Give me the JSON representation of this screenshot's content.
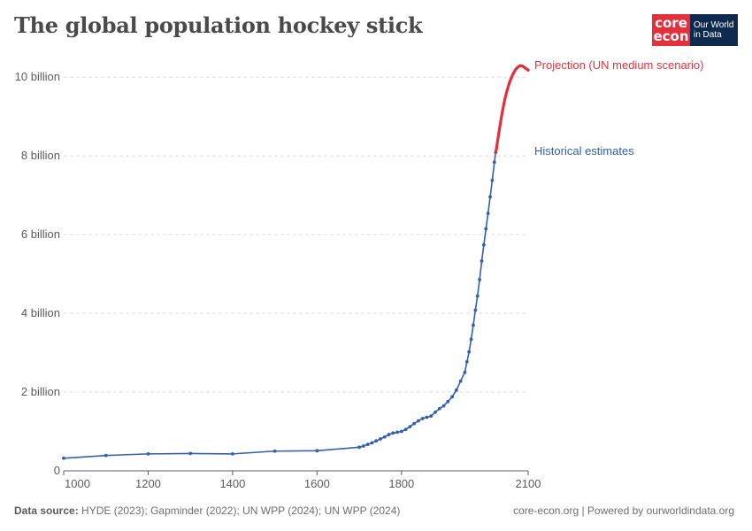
{
  "header": {
    "title": "The global population hockey stick",
    "logo_core_top": "core",
    "logo_core_bottom": "econ",
    "logo_owid_line1": "Our World",
    "logo_owid_line2": "in Data"
  },
  "footer": {
    "source_label": "Data source:",
    "source_text": "HYDE (2023); Gapminder (2022); UN WPP (2024); UN WPP (2024)",
    "credit": "core-econ.org | Powered by ourworldindata.org"
  },
  "colors": {
    "historical": "#3360a9",
    "projection": "#e2313c",
    "grid": "#dddddd",
    "axis": "#5b5b5b"
  },
  "chart_data": {
    "type": "line",
    "title": "The global population hockey stick",
    "xlim": [
      1000,
      2100
    ],
    "ylim": [
      0,
      10.5
    ],
    "y_unit": "billion",
    "x_ticks": [
      1000,
      1200,
      1400,
      1600,
      1800,
      2100
    ],
    "y_ticks": [
      {
        "value": 0,
        "label": "0"
      },
      {
        "value": 2,
        "label": "2 billion"
      },
      {
        "value": 4,
        "label": "4 billion"
      },
      {
        "value": 6,
        "label": "6 billion"
      },
      {
        "value": 8,
        "label": "8 billion"
      },
      {
        "value": 10,
        "label": "10 billion"
      }
    ],
    "grid": true,
    "series": [
      {
        "name": "Historical estimates",
        "color": "#3360a9",
        "x": [
          1000,
          1100,
          1200,
          1300,
          1400,
          1500,
          1600,
          1700,
          1710,
          1720,
          1730,
          1740,
          1750,
          1760,
          1770,
          1780,
          1790,
          1800,
          1810,
          1820,
          1830,
          1840,
          1850,
          1860,
          1870,
          1880,
          1890,
          1900,
          1910,
          1920,
          1930,
          1940,
          1950,
          1955,
          1960,
          1965,
          1970,
          1975,
          1980,
          1985,
          1990,
          1995,
          2000,
          2005,
          2010,
          2015,
          2020,
          2023
        ],
        "y": [
          0.32,
          0.39,
          0.43,
          0.44,
          0.43,
          0.5,
          0.51,
          0.6,
          0.63,
          0.67,
          0.71,
          0.76,
          0.81,
          0.86,
          0.92,
          0.96,
          0.98,
          1.0,
          1.05,
          1.12,
          1.2,
          1.27,
          1.33,
          1.36,
          1.39,
          1.49,
          1.58,
          1.65,
          1.76,
          1.88,
          2.05,
          2.28,
          2.5,
          2.77,
          3.02,
          3.34,
          3.7,
          4.08,
          4.44,
          4.86,
          5.33,
          5.74,
          6.15,
          6.54,
          6.96,
          7.38,
          7.84,
          8.09
        ]
      },
      {
        "name": "Projection (UN medium scenario)",
        "color": "#e2313c",
        "x": [
          2023,
          2025,
          2030,
          2035,
          2040,
          2045,
          2050,
          2055,
          2060,
          2065,
          2070,
          2075,
          2080,
          2085,
          2090,
          2095,
          2100
        ],
        "y": [
          8.09,
          8.19,
          8.55,
          8.88,
          9.19,
          9.45,
          9.66,
          9.84,
          9.98,
          10.1,
          10.19,
          10.25,
          10.29,
          10.29,
          10.26,
          10.22,
          10.18
        ]
      }
    ],
    "source": "HYDE (2023); Gapminder (2022); UN WPP (2024); UN WPP (2024)"
  }
}
